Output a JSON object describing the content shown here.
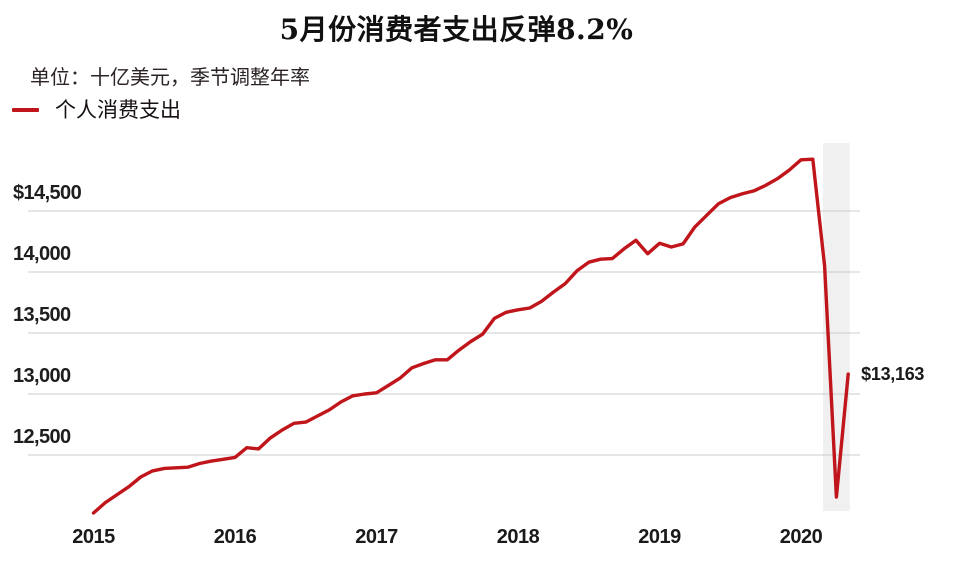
{
  "title": "5月份消费者支出反弹8.2%",
  "subtitle": "单位：十亿美元，季节调整年率",
  "legend": {
    "label": "个人消费支出"
  },
  "colors": {
    "line": "#bf151b",
    "band": "#f0f0f0",
    "grid": "#cccccc",
    "axis_text": "#1d1d1d"
  },
  "chart_data": {
    "type": "line",
    "title": "5月份消费者支出反弹8.2%",
    "subtitle_unit": "单位：十亿美元，季节调整年率",
    "frequency": "monthly",
    "x_start": "2015-01",
    "x_end": "2020-05",
    "grid": true,
    "legend_position": "top-left",
    "ylim": [
      11950,
      15050
    ],
    "series": [
      {
        "name": "个人消费支出",
        "values": [
          12025,
          12110,
          12175,
          12240,
          12320,
          12370,
          12390,
          12395,
          12400,
          12430,
          12450,
          12465,
          12480,
          12560,
          12550,
          12640,
          12705,
          12760,
          12770,
          12820,
          12870,
          12935,
          12985,
          13000,
          13010,
          13070,
          13130,
          13215,
          13250,
          13280,
          13280,
          13360,
          13430,
          13490,
          13620,
          13670,
          13690,
          13705,
          13760,
          13835,
          13905,
          14010,
          14080,
          14105,
          14110,
          14190,
          14260,
          14150,
          14235,
          14205,
          14230,
          14370,
          14465,
          14560,
          14610,
          14640,
          14665,
          14710,
          14765,
          14835,
          14920,
          14925,
          14050,
          12156,
          13163
        ]
      }
    ],
    "y_ticks": [
      {
        "label": "$14,500",
        "value": 14500
      },
      {
        "label": "14,000",
        "value": 14000
      },
      {
        "label": "13,500",
        "value": 13500
      },
      {
        "label": "13,000",
        "value": 13000
      },
      {
        "label": "12,500",
        "value": 12500
      }
    ],
    "x_ticks": [
      {
        "label": "2015",
        "month_index": 0
      },
      {
        "label": "2016",
        "month_index": 12
      },
      {
        "label": "2017",
        "month_index": 24
      },
      {
        "label": "2018",
        "month_index": 36
      },
      {
        "label": "2019",
        "month_index": 48
      },
      {
        "label": "2020",
        "month_index": 60
      }
    ],
    "highlight_band": {
      "start_index": 62,
      "end_index": 64
    },
    "end_label": {
      "label": "$13,163",
      "value": 13163
    }
  }
}
